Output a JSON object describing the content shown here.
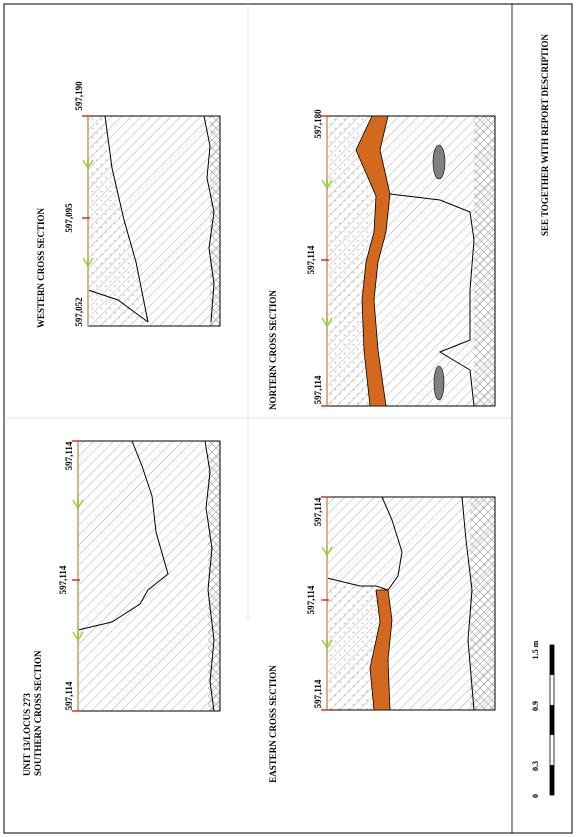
{
  "sheet": {
    "note": "SEE TOGETHER WITH REPORT DESCRIPTION"
  },
  "sections": {
    "southern": {
      "title_line1": "UNIT 13/LOCUS 273",
      "title_line2": "SOUTHERN CROSS SECTION",
      "elev_left": "597,114",
      "elev_mid": "597,114",
      "elev_right": "597,114"
    },
    "western": {
      "title": "WESTERN CROSS SECTION",
      "elev_left": "597,052",
      "elev_mid": "597,095",
      "elev_right": "597,190"
    },
    "eastern": {
      "title": "EASTERN CROSS SECTION",
      "elev_left": "597,114",
      "elev_mid": "597,114",
      "elev_right": "597,114"
    },
    "northern": {
      "title": "NORTERN CROSS SECTION",
      "elev_left": "597,114",
      "elev_mid": "597,114",
      "elev_right": "597,180"
    }
  },
  "scale_bar": {
    "ticks": [
      "0",
      "0.3",
      "0.9",
      "1.5 m"
    ]
  },
  "colors": {
    "ash_layer": "#d2691e",
    "stone": "#808080",
    "arrow": "#9acd32",
    "surface": "#d2b48c",
    "elevation_mark": "#cc0000"
  }
}
